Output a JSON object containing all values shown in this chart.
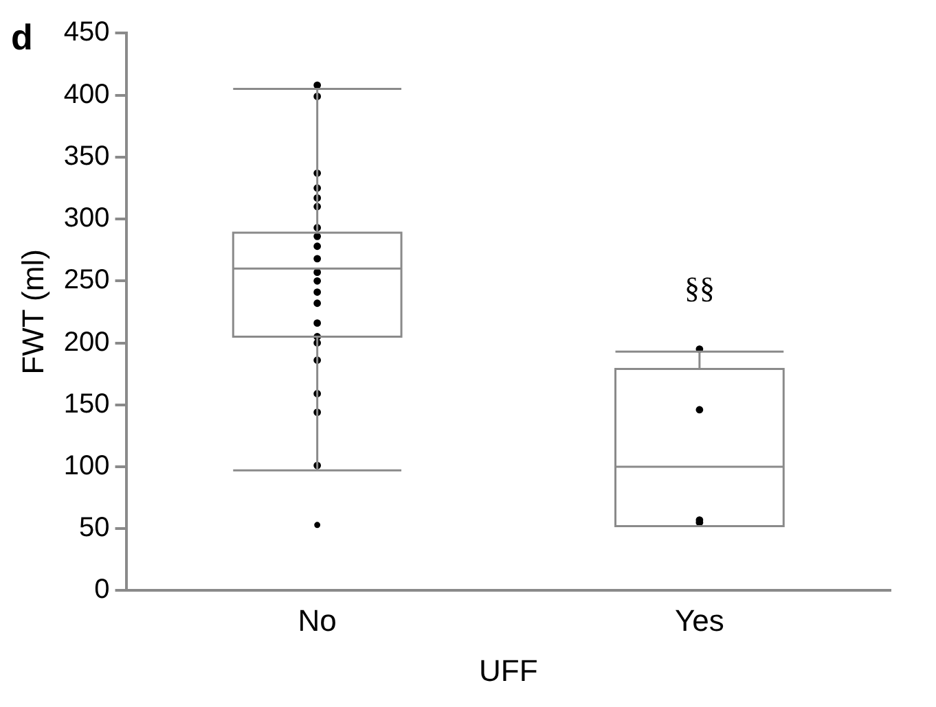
{
  "chart_data": {
    "type": "box",
    "title": "d",
    "xlabel": "UFF",
    "ylabel": "FWT (ml)",
    "categories": [
      "No",
      "Yes"
    ],
    "boxes": [
      {
        "low": 97,
        "q1": 205,
        "median": 260,
        "q3": 289,
        "high": 405,
        "outliers": [
          53
        ]
      },
      {
        "low": 52,
        "q1": 52,
        "median": 100,
        "q3": 179,
        "high": 193
      }
    ],
    "series": [
      {
        "type": "scatter",
        "color": "#000000",
        "x": [
          "No",
          "No",
          "No",
          "No",
          "No",
          "No",
          "No",
          "No",
          "No",
          "No",
          "No",
          "No",
          "No",
          "No",
          "No",
          "No",
          "No",
          "No",
          "No",
          "No",
          "No",
          "Yes",
          "Yes",
          "Yes",
          "Yes"
        ],
        "values": [
          408,
          399,
          337,
          325,
          317,
          310,
          293,
          286,
          278,
          268,
          257,
          250,
          241,
          232,
          216,
          205,
          200,
          186,
          159,
          144,
          101,
          195,
          146,
          57,
          55
        ]
      }
    ],
    "marker": "circle",
    "ylim": [
      0,
      450
    ],
    "yticks": [
      0,
      50,
      100,
      150,
      200,
      250,
      300,
      350,
      400,
      450
    ],
    "grid": false,
    "legend": false,
    "annotations": [
      "§§"
    ]
  }
}
